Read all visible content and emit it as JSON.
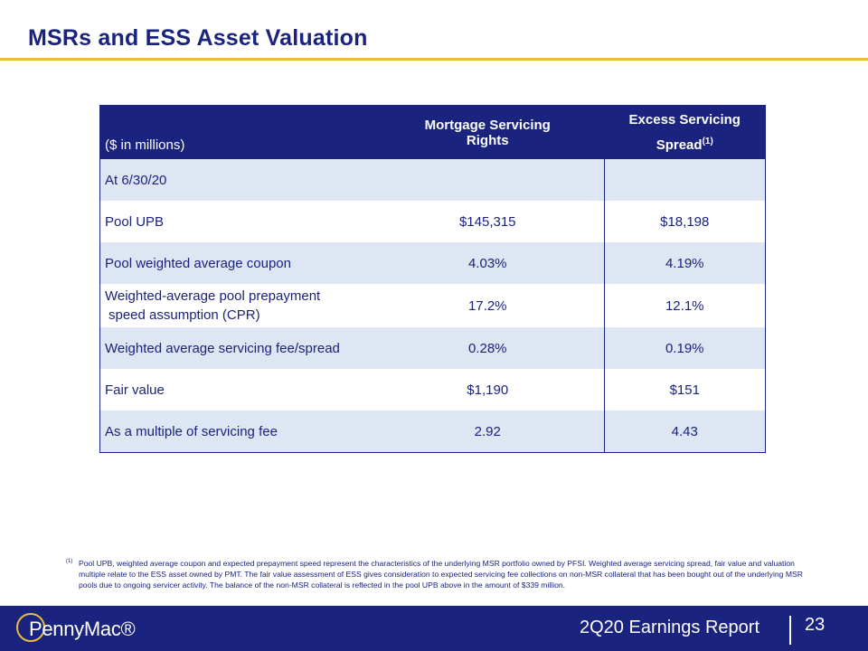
{
  "title": "MSRs and ESS Asset Valuation",
  "table": {
    "units_label": "($ in millions)",
    "col_msr": "Mortgage Servicing Rights",
    "col_ess": "Excess Servicing Spread",
    "col_ess_note": "(1)",
    "section_label": "At 6/30/20",
    "rows": [
      {
        "label": "Pool UPB",
        "msr": "$145,315",
        "ess": "$18,198"
      },
      {
        "label": "Pool weighted average coupon",
        "msr": "4.03%",
        "ess": "4.19%"
      },
      {
        "label_line1": "Weighted-average pool prepayment",
        "label_line2": "speed assumption (CPR)",
        "msr": "17.2%",
        "ess": "12.1%"
      },
      {
        "label": "Weighted average servicing fee/spread",
        "msr": "0.28%",
        "ess": "0.19%"
      },
      {
        "label": "Fair value",
        "msr": "$1,190",
        "ess": "$151"
      },
      {
        "label": "As a multiple of servicing fee",
        "msr": "2.92",
        "ess": "4.43"
      }
    ]
  },
  "footnote": {
    "marker": "(1)",
    "text": "Pool UPB, weighted average coupon and expected prepayment speed represent the characteristics of the underlying MSR portfolio owned by PFSI. Weighted average servicing spread, fair value and valuation multiple relate to the ESS asset owned by PMT. The fair value assessment of ESS gives consideration to expected servicing fee collections on non-MSR collateral that has been bought out of the underlying MSR pools due to ongoing servicer activity. The balance of the non-MSR collateral is reflected in the pool UPB above in the amount of $339 million."
  },
  "footer": {
    "logo_text": "PennyMac®",
    "report": "2Q20 Earnings Report",
    "page": "23"
  },
  "colors": {
    "navy": "#1a237e",
    "gold": "#e8bd3c",
    "row_shade": "#dde6f2"
  }
}
